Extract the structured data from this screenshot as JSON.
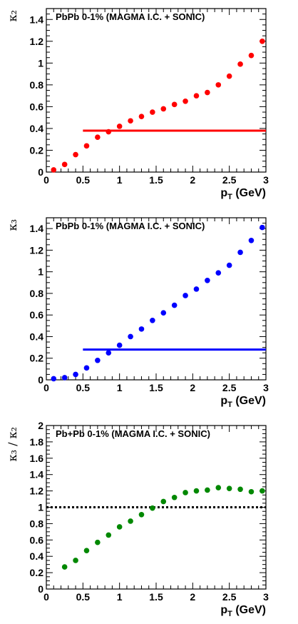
{
  "chart_data": [
    {
      "type": "scatter",
      "title": "PbPb 0-1% (MAGMA I.C. + SONIC)",
      "ylabel": "κ₂",
      "xlabel": "pT (GeV)",
      "xlim": [
        0,
        3
      ],
      "ylim": [
        0,
        1.5
      ],
      "x_ticks": [
        "0",
        "0.5",
        "1",
        "1.5",
        "2",
        "2.5",
        "3"
      ],
      "y_ticks": [
        "0",
        "0.2",
        "0.4",
        "0.6",
        "0.8",
        "1",
        "1.2",
        "1.4"
      ],
      "color": "#ff0000",
      "series": [
        {
          "x": [
            0.1,
            0.25,
            0.4,
            0.55,
            0.7,
            0.85,
            1.0,
            1.15,
            1.3,
            1.45,
            1.6,
            1.75,
            1.9,
            2.05,
            2.2,
            2.35,
            2.5,
            2.65,
            2.8,
            2.95
          ],
          "y": [
            0.02,
            0.07,
            0.16,
            0.24,
            0.32,
            0.37,
            0.42,
            0.47,
            0.51,
            0.55,
            0.58,
            0.62,
            0.65,
            0.7,
            0.73,
            0.8,
            0.88,
            0.99,
            1.07,
            1.2
          ]
        }
      ],
      "hline": {
        "y": 0.38,
        "x_start": 0.5,
        "x_end": 3.0,
        "style": "solid"
      }
    },
    {
      "type": "scatter",
      "title": "PbPb 0-1% (MAGMA I.C. + SONIC)",
      "ylabel": "κ₃",
      "xlabel": "pT (GeV)",
      "xlim": [
        0,
        3
      ],
      "ylim": [
        0,
        1.5
      ],
      "x_ticks": [
        "0",
        "0.5",
        "1",
        "1.5",
        "2",
        "2.5",
        "3"
      ],
      "y_ticks": [
        "0",
        "0.2",
        "0.4",
        "0.6",
        "0.8",
        "1",
        "1.2",
        "1.4"
      ],
      "color": "#0000ff",
      "series": [
        {
          "x": [
            0.1,
            0.25,
            0.4,
            0.55,
            0.7,
            0.85,
            1.0,
            1.15,
            1.3,
            1.45,
            1.6,
            1.75,
            1.9,
            2.05,
            2.2,
            2.35,
            2.5,
            2.65,
            2.8,
            2.95
          ],
          "y": [
            0.01,
            0.02,
            0.05,
            0.11,
            0.18,
            0.25,
            0.32,
            0.4,
            0.47,
            0.55,
            0.62,
            0.69,
            0.78,
            0.84,
            0.92,
            0.99,
            1.06,
            1.18,
            1.29,
            1.41
          ]
        }
      ],
      "hline": {
        "y": 0.28,
        "x_start": 0.5,
        "x_end": 3.0,
        "style": "solid"
      }
    },
    {
      "type": "scatter",
      "title": "Pb+Pb 0-1% (MAGMA I.C. + SONIC)",
      "ylabel": "κ₃ / κ₂",
      "xlabel": "pT (GeV)",
      "xlim": [
        0,
        3
      ],
      "ylim": [
        0,
        2
      ],
      "x_ticks": [
        "0",
        "0.5",
        "1",
        "1.5",
        "2",
        "2.5",
        "3"
      ],
      "y_ticks": [
        "0",
        "0.2",
        "0.4",
        "0.6",
        "0.8",
        "1",
        "1.2",
        "1.4",
        "1.6",
        "1.8",
        "2"
      ],
      "color": "#008800",
      "series": [
        {
          "x": [
            0.25,
            0.4,
            0.55,
            0.7,
            0.85,
            1.0,
            1.15,
            1.3,
            1.45,
            1.6,
            1.75,
            1.9,
            2.05,
            2.2,
            2.35,
            2.5,
            2.65,
            2.8,
            2.95
          ],
          "y": [
            0.27,
            0.35,
            0.47,
            0.57,
            0.66,
            0.76,
            0.83,
            0.91,
            0.99,
            1.07,
            1.12,
            1.18,
            1.2,
            1.21,
            1.24,
            1.23,
            1.22,
            1.19,
            1.2
          ]
        }
      ],
      "hline": {
        "y": 1.0,
        "x_start": 0.0,
        "x_end": 3.0,
        "style": "dotted"
      }
    }
  ]
}
